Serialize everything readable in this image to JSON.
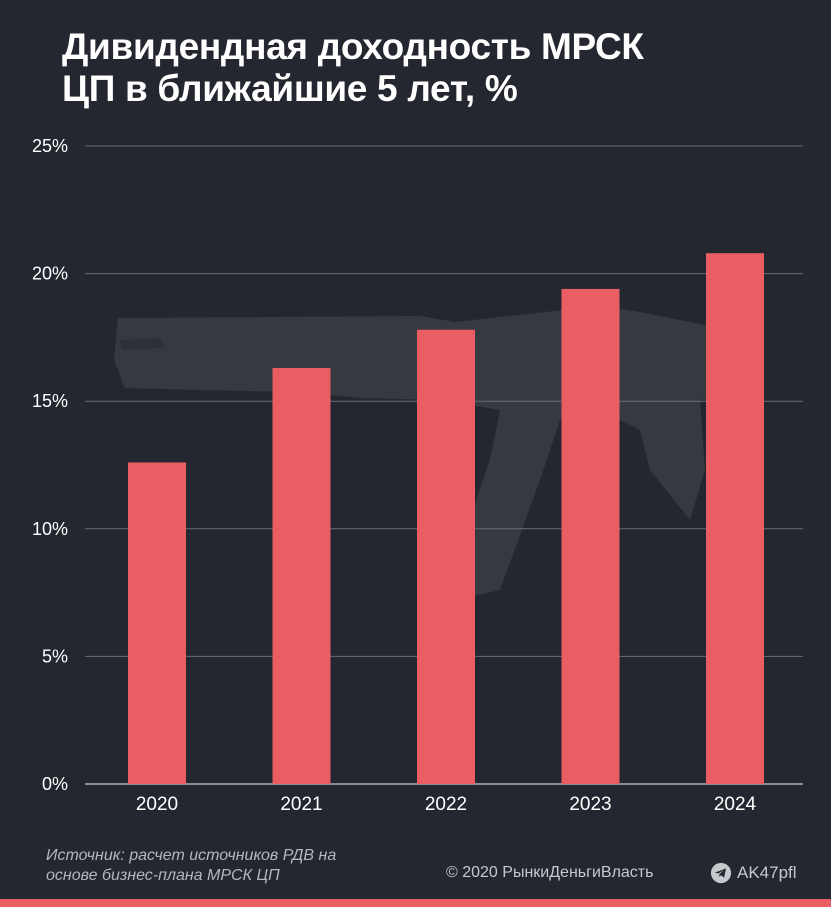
{
  "title_lines": [
    "Дивидендная доходность МРСК",
    "ЦП в ближайшие 5 лет, %"
  ],
  "source_lines": [
    "Источник: расчет источников РДВ на",
    "основе бизнес-плана МРСК ЦП"
  ],
  "copyright": "© 2020  РынкиДеньгиВласть",
  "telegram_handle": "AK47pfl",
  "colors": {
    "background": "#24272f",
    "bar": "#e85e62",
    "grid": "#6b6e76",
    "watermark": "#3a3c43"
  },
  "chart_data": {
    "type": "bar",
    "categories": [
      "2020",
      "2021",
      "2022",
      "2023",
      "2024"
    ],
    "values": [
      12.6,
      16.3,
      17.8,
      19.4,
      20.8
    ],
    "ylim": [
      0,
      25
    ],
    "yticks": [
      0,
      5,
      10,
      15,
      20,
      25
    ],
    "ytick_labels": [
      "0%",
      "5%",
      "10%",
      "15%",
      "20%",
      "25%"
    ],
    "grid": true,
    "legend": "none"
  }
}
